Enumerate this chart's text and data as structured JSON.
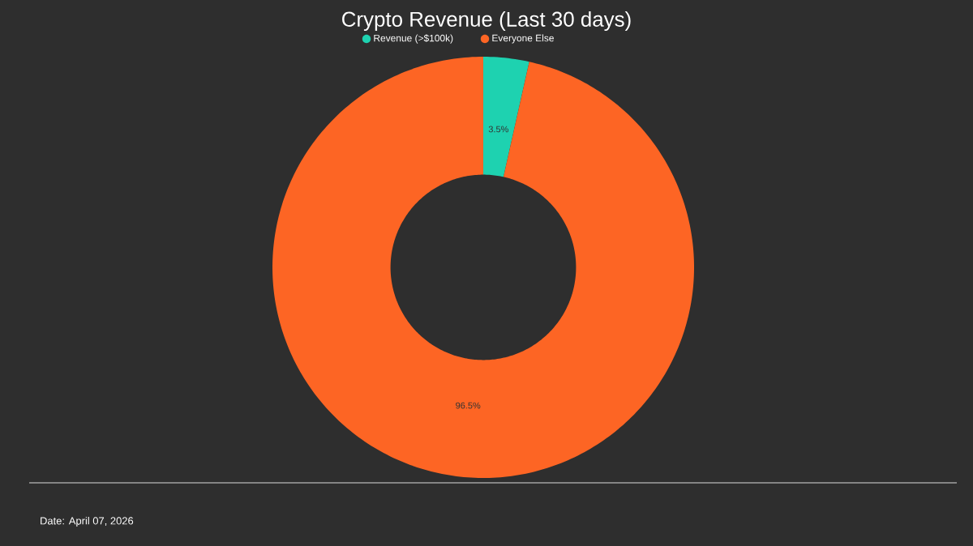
{
  "chart_data": {
    "type": "donut",
    "title": "Crypto Revenue (Last 30 days)",
    "categories": [
      "Revenue (>$100k)",
      "Everyone Else"
    ],
    "values": [
      3.5,
      96.5
    ],
    "colors": [
      "#1ed2b0",
      "#fd6524"
    ],
    "value_labels": [
      "3.5%",
      "96.5%"
    ],
    "legend": "top",
    "annotations": [
      "Date: April 07, 2026"
    ]
  }
}
